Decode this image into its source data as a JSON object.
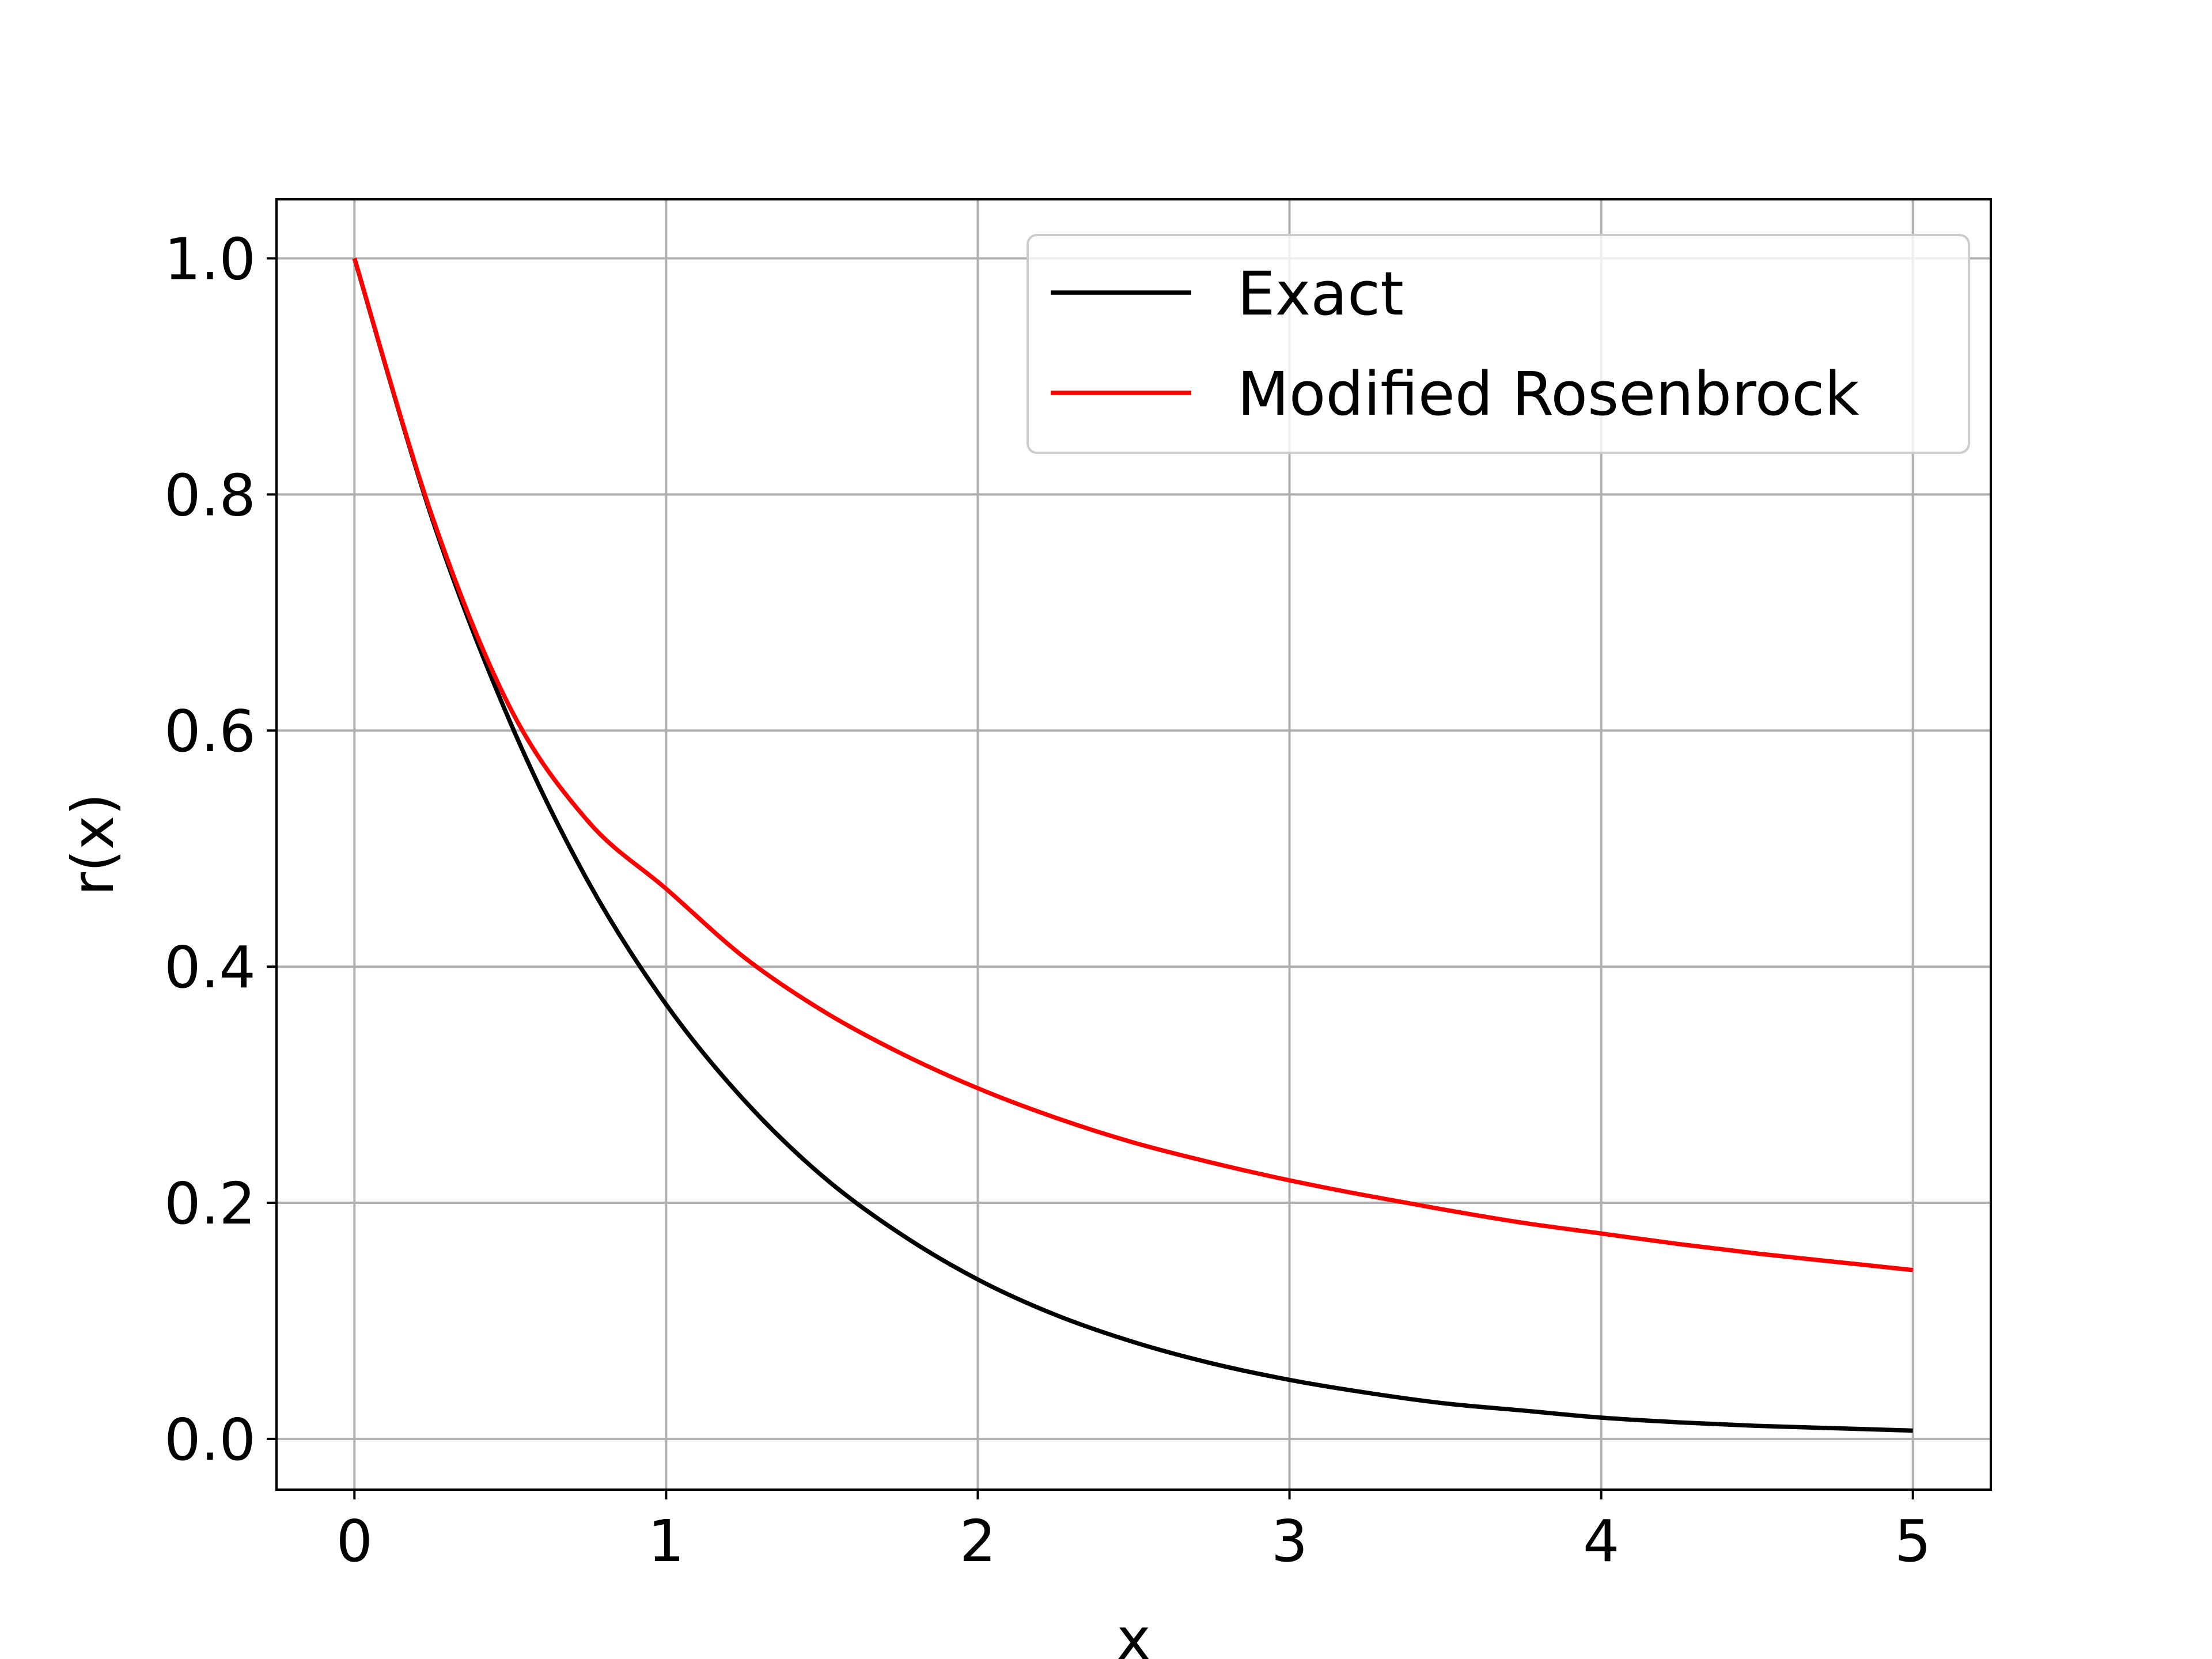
{
  "chart_data": {
    "type": "line",
    "title": "",
    "xlabel": "x",
    "ylabel": "r(x)",
    "xlim": [
      -0.25,
      5.25
    ],
    "ylim": [
      -0.043,
      1.05
    ],
    "xticks": [
      0,
      1,
      2,
      3,
      4,
      5
    ],
    "yticks": [
      0.0,
      0.2,
      0.4,
      0.6,
      0.8,
      1.0
    ],
    "xtick_labels": [
      "0",
      "1",
      "2",
      "3",
      "4",
      "5"
    ],
    "ytick_labels": [
      "0.0",
      "0.2",
      "0.4",
      "0.6",
      "0.8",
      "1.0"
    ],
    "grid": true,
    "legend": "top-right",
    "series": [
      {
        "name": "Exact",
        "color": "#000000",
        "x": [
          0,
          0.25,
          0.5,
          0.75,
          1.0,
          1.25,
          1.5,
          1.75,
          2.0,
          2.25,
          2.5,
          2.75,
          3.0,
          3.25,
          3.5,
          3.75,
          4.0,
          4.25,
          4.5,
          4.75,
          5.0
        ],
        "y": [
          1.0,
          0.779,
          0.607,
          0.472,
          0.368,
          0.287,
          0.223,
          0.174,
          0.135,
          0.105,
          0.082,
          0.064,
          0.05,
          0.039,
          0.03,
          0.024,
          0.018,
          0.014,
          0.011,
          0.009,
          0.007
        ]
      },
      {
        "name": "Modified Rosenbrock",
        "color": "#ff0000",
        "x": [
          0,
          0.25,
          0.5,
          0.75,
          1.0,
          1.25,
          1.5,
          1.75,
          2.0,
          2.25,
          2.5,
          2.75,
          3.0,
          3.25,
          3.5,
          3.75,
          4.0,
          4.25,
          4.5,
          4.75,
          5.0
        ],
        "y": [
          1.0,
          0.781,
          0.619,
          0.523,
          0.466,
          0.408,
          0.363,
          0.327,
          0.297,
          0.272,
          0.251,
          0.234,
          0.219,
          0.206,
          0.194,
          0.183,
          0.174,
          0.165,
          0.157,
          0.15,
          0.143
        ]
      }
    ]
  }
}
